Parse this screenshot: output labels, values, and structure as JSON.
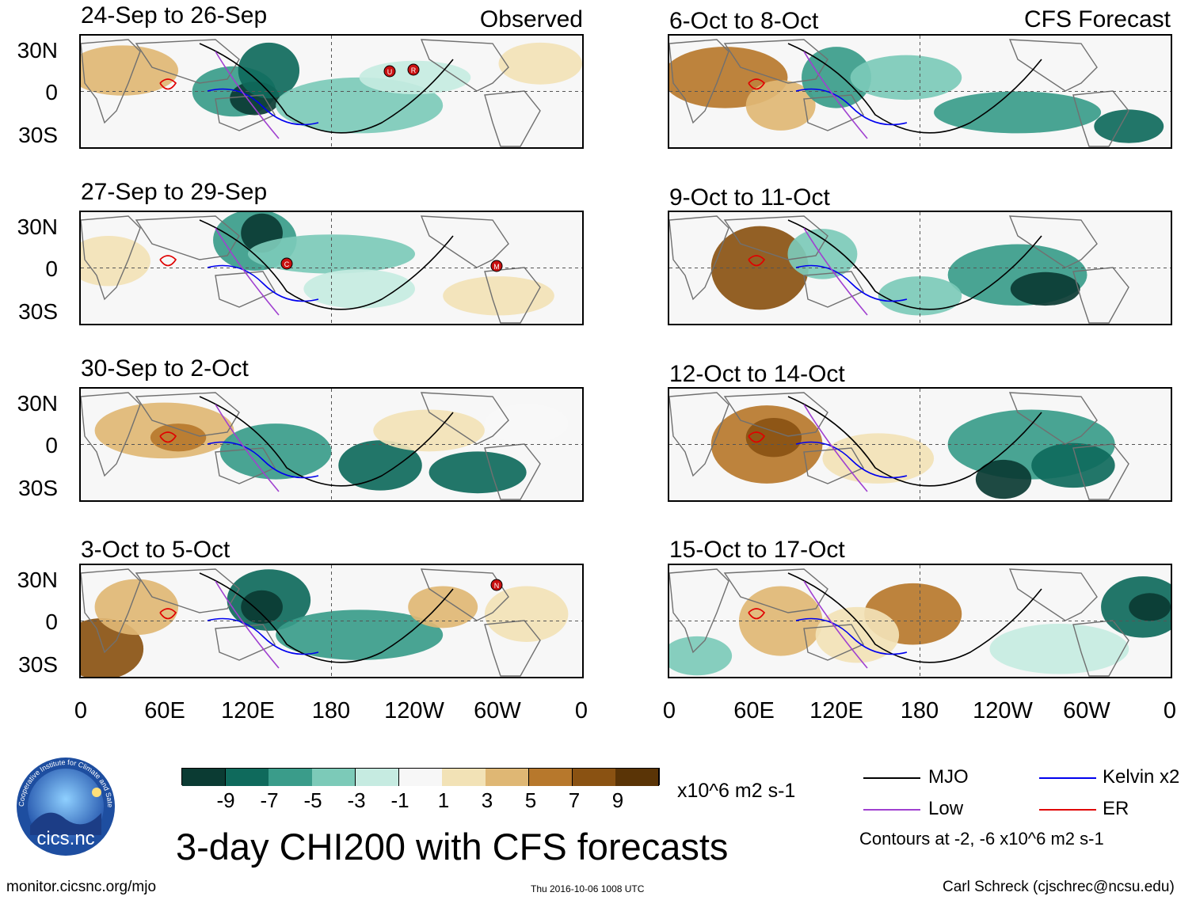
{
  "headers": {
    "observed": "Observed",
    "forecast": "CFS Forecast"
  },
  "observed_panels": [
    "24-Sep to 26-Sep",
    "27-Sep to 29-Sep",
    "30-Sep to 2-Oct",
    "3-Oct to 5-Oct"
  ],
  "forecast_panels": [
    "6-Oct to 8-Oct",
    "9-Oct to 11-Oct",
    "12-Oct to 14-Oct",
    "15-Oct to 17-Oct"
  ],
  "lat_labels": [
    "30N",
    "0",
    "30S"
  ],
  "lon_labels": [
    "0",
    "60E",
    "120E",
    "180",
    "120W",
    "60W",
    "0"
  ],
  "colorbar": {
    "ticks": [
      "-9",
      "-7",
      "-5",
      "-3",
      "-1",
      "1",
      "3",
      "5",
      "7",
      "9"
    ],
    "units": "x10^6 m2 s-1",
    "colors": [
      "#0b3b33",
      "#0f6a5c",
      "#3a9c8a",
      "#7ccab8",
      "#c6ebe1",
      "#f7f7f7",
      "#f2e2b6",
      "#dfb774",
      "#b7782c",
      "#8a5212",
      "#5a3406"
    ]
  },
  "legend": {
    "mjo": "MJO",
    "kelvin": "Kelvin x2",
    "low": "Low",
    "er": "ER",
    "mjo_color": "#000000",
    "kelvin_color": "#0000ee",
    "low_color": "#a040d0",
    "er_color": "#e00000",
    "contours_note": "Contours at -2, -6 x10^6 m2 s-1"
  },
  "storm_markers": [
    {
      "panel": 0,
      "label": "U"
    },
    {
      "panel": 0,
      "label": "R"
    },
    {
      "panel": 1,
      "label": "C"
    },
    {
      "panel": 1,
      "label": "M"
    },
    {
      "panel": 3,
      "label": "N"
    }
  ],
  "logo_text": "cics.nc",
  "logo_ring_text": "Cooperative Institute for Climate and Satellites",
  "main_title": "3-day CHI200 with CFS forecasts",
  "footer": {
    "url": "monitor.cicsnc.org/mjo",
    "timestamp": "Thu 2016-10-06 1008 UTC",
    "author": "Carl Schreck (cjschrec@ncsu.edu)"
  }
}
